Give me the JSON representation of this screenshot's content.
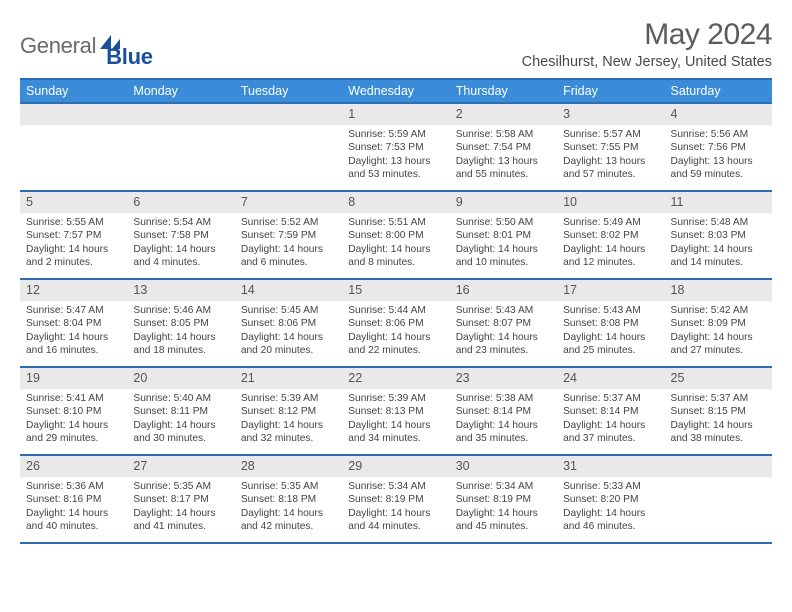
{
  "logo": {
    "text1": "General",
    "text2": "Blue"
  },
  "title": "May 2024",
  "location": "Chesilhurst, New Jersey, United States",
  "colors": {
    "header_bg": "#3a8bd8",
    "header_rule": "#2d6db3",
    "daynum_bg": "#e9e9e9",
    "text": "#444444",
    "logo_gray": "#6a6a6a",
    "logo_blue": "#1a4f9c"
  },
  "dayHeaders": [
    "Sunday",
    "Monday",
    "Tuesday",
    "Wednesday",
    "Thursday",
    "Friday",
    "Saturday"
  ],
  "weeks": [
    [
      {
        "n": "",
        "sunrise": "",
        "sunset": "",
        "daylight": ""
      },
      {
        "n": "",
        "sunrise": "",
        "sunset": "",
        "daylight": ""
      },
      {
        "n": "",
        "sunrise": "",
        "sunset": "",
        "daylight": ""
      },
      {
        "n": "1",
        "sunrise": "5:59 AM",
        "sunset": "7:53 PM",
        "daylight": "13 hours and 53 minutes."
      },
      {
        "n": "2",
        "sunrise": "5:58 AM",
        "sunset": "7:54 PM",
        "daylight": "13 hours and 55 minutes."
      },
      {
        "n": "3",
        "sunrise": "5:57 AM",
        "sunset": "7:55 PM",
        "daylight": "13 hours and 57 minutes."
      },
      {
        "n": "4",
        "sunrise": "5:56 AM",
        "sunset": "7:56 PM",
        "daylight": "13 hours and 59 minutes."
      }
    ],
    [
      {
        "n": "5",
        "sunrise": "5:55 AM",
        "sunset": "7:57 PM",
        "daylight": "14 hours and 2 minutes."
      },
      {
        "n": "6",
        "sunrise": "5:54 AM",
        "sunset": "7:58 PM",
        "daylight": "14 hours and 4 minutes."
      },
      {
        "n": "7",
        "sunrise": "5:52 AM",
        "sunset": "7:59 PM",
        "daylight": "14 hours and 6 minutes."
      },
      {
        "n": "8",
        "sunrise": "5:51 AM",
        "sunset": "8:00 PM",
        "daylight": "14 hours and 8 minutes."
      },
      {
        "n": "9",
        "sunrise": "5:50 AM",
        "sunset": "8:01 PM",
        "daylight": "14 hours and 10 minutes."
      },
      {
        "n": "10",
        "sunrise": "5:49 AM",
        "sunset": "8:02 PM",
        "daylight": "14 hours and 12 minutes."
      },
      {
        "n": "11",
        "sunrise": "5:48 AM",
        "sunset": "8:03 PM",
        "daylight": "14 hours and 14 minutes."
      }
    ],
    [
      {
        "n": "12",
        "sunrise": "5:47 AM",
        "sunset": "8:04 PM",
        "daylight": "14 hours and 16 minutes."
      },
      {
        "n": "13",
        "sunrise": "5:46 AM",
        "sunset": "8:05 PM",
        "daylight": "14 hours and 18 minutes."
      },
      {
        "n": "14",
        "sunrise": "5:45 AM",
        "sunset": "8:06 PM",
        "daylight": "14 hours and 20 minutes."
      },
      {
        "n": "15",
        "sunrise": "5:44 AM",
        "sunset": "8:06 PM",
        "daylight": "14 hours and 22 minutes."
      },
      {
        "n": "16",
        "sunrise": "5:43 AM",
        "sunset": "8:07 PM",
        "daylight": "14 hours and 23 minutes."
      },
      {
        "n": "17",
        "sunrise": "5:43 AM",
        "sunset": "8:08 PM",
        "daylight": "14 hours and 25 minutes."
      },
      {
        "n": "18",
        "sunrise": "5:42 AM",
        "sunset": "8:09 PM",
        "daylight": "14 hours and 27 minutes."
      }
    ],
    [
      {
        "n": "19",
        "sunrise": "5:41 AM",
        "sunset": "8:10 PM",
        "daylight": "14 hours and 29 minutes."
      },
      {
        "n": "20",
        "sunrise": "5:40 AM",
        "sunset": "8:11 PM",
        "daylight": "14 hours and 30 minutes."
      },
      {
        "n": "21",
        "sunrise": "5:39 AM",
        "sunset": "8:12 PM",
        "daylight": "14 hours and 32 minutes."
      },
      {
        "n": "22",
        "sunrise": "5:39 AM",
        "sunset": "8:13 PM",
        "daylight": "14 hours and 34 minutes."
      },
      {
        "n": "23",
        "sunrise": "5:38 AM",
        "sunset": "8:14 PM",
        "daylight": "14 hours and 35 minutes."
      },
      {
        "n": "24",
        "sunrise": "5:37 AM",
        "sunset": "8:14 PM",
        "daylight": "14 hours and 37 minutes."
      },
      {
        "n": "25",
        "sunrise": "5:37 AM",
        "sunset": "8:15 PM",
        "daylight": "14 hours and 38 minutes."
      }
    ],
    [
      {
        "n": "26",
        "sunrise": "5:36 AM",
        "sunset": "8:16 PM",
        "daylight": "14 hours and 40 minutes."
      },
      {
        "n": "27",
        "sunrise": "5:35 AM",
        "sunset": "8:17 PM",
        "daylight": "14 hours and 41 minutes."
      },
      {
        "n": "28",
        "sunrise": "5:35 AM",
        "sunset": "8:18 PM",
        "daylight": "14 hours and 42 minutes."
      },
      {
        "n": "29",
        "sunrise": "5:34 AM",
        "sunset": "8:19 PM",
        "daylight": "14 hours and 44 minutes."
      },
      {
        "n": "30",
        "sunrise": "5:34 AM",
        "sunset": "8:19 PM",
        "daylight": "14 hours and 45 minutes."
      },
      {
        "n": "31",
        "sunrise": "5:33 AM",
        "sunset": "8:20 PM",
        "daylight": "14 hours and 46 minutes."
      },
      {
        "n": "",
        "sunrise": "",
        "sunset": "",
        "daylight": ""
      }
    ]
  ],
  "labels": {
    "sunrise": "Sunrise: ",
    "sunset": "Sunset: ",
    "daylight": "Daylight: "
  }
}
